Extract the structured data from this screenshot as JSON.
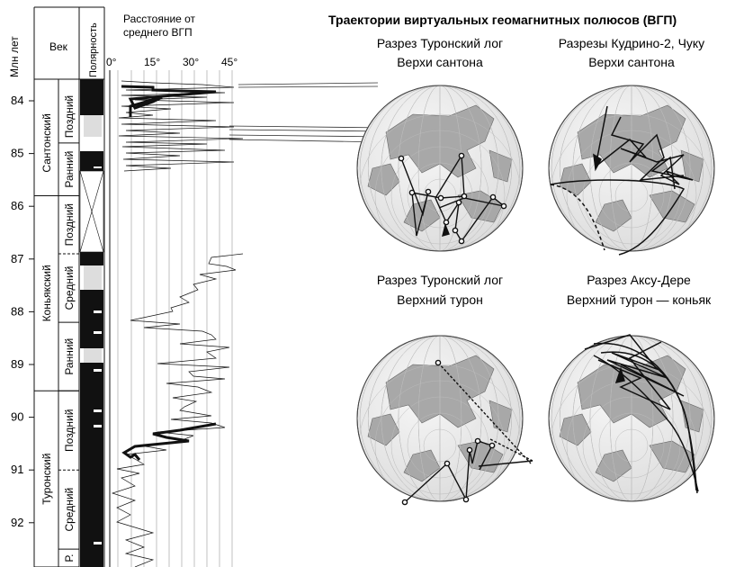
{
  "figure": {
    "header_left": {
      "age_axis_label": "Млн лет",
      "age_col_label": "Век",
      "polarity_col_label": "Полярность"
    },
    "distance_header": {
      "line1": "Расстояние от",
      "line2": "среднего ВГП"
    },
    "distance_ticks": [
      "0°",
      "15°",
      "30°",
      "45°"
    ],
    "age_ticks": [
      "84",
      "85",
      "86",
      "87",
      "88",
      "89",
      "90",
      "91",
      "92"
    ],
    "stages": [
      {
        "name": "Сантонский",
        "from": 83.8,
        "to": 85.8
      },
      {
        "name": "Коньякский",
        "from": 85.8,
        "to": 89.5
      },
      {
        "name": "Туронский",
        "from": 89.5,
        "to": 93.0
      }
    ],
    "substages": [
      {
        "name": "Поздний",
        "from": 83.8,
        "to": 84.8
      },
      {
        "name": "Ранний",
        "from": 84.8,
        "to": 85.8
      },
      {
        "name": "Поздний",
        "from": 85.8,
        "to": 86.9
      },
      {
        "name": "Средний",
        "from": 86.9,
        "to": 88.2
      },
      {
        "name": "Ранний",
        "from": 88.2,
        "to": 89.5
      },
      {
        "name": "Поздний",
        "from": 89.5,
        "to": 91.0
      },
      {
        "name": "Средний",
        "from": 91.0,
        "to": 92.5
      },
      {
        "name": "Р.",
        "from": 92.5,
        "to": 93.0
      }
    ],
    "main_title": "Траектории виртуальных геомагнитных полюсов (ВГП)",
    "panels": [
      {
        "line1": "Разрез Туронский лог",
        "line2": "Верхи сантона"
      },
      {
        "line1": "Разрезы Кудрино-2, Чуку",
        "line2": "Верхи сантона"
      },
      {
        "line1": "Разрез Туронский лог",
        "line2": "Верхний турон"
      },
      {
        "line1": "Разрез Аксу-Дере",
        "line2": "Верхний турон — коньяк"
      }
    ]
  },
  "colors": {
    "normal": "#111111",
    "mixed": "#dddddd",
    "land": "#a8a8a8",
    "ocean": "#ededed"
  }
}
